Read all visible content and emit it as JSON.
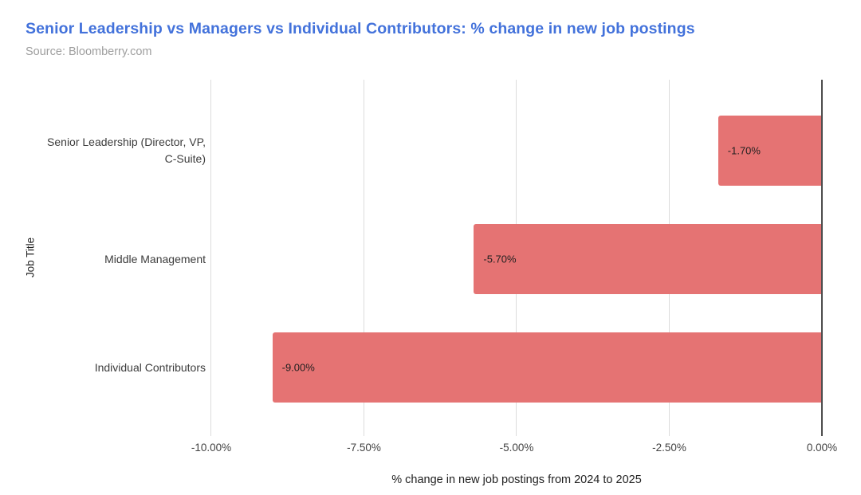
{
  "header": {
    "title": "Senior Leadership vs Managers vs Individual Contributors: % change in new job postings",
    "source": "Source: Bloomberry.com"
  },
  "chart_data": {
    "type": "bar",
    "orientation": "horizontal",
    "title": "Senior Leadership vs Managers vs Individual Contributors: % change in new job postings",
    "source": "Source: Bloomberry.com",
    "categories": [
      "Senior Leadership (Director, VP, C-Suite)",
      "Middle Management",
      "Individual Contributors"
    ],
    "values": [
      -1.7,
      -5.7,
      -9.0
    ],
    "bar_labels": [
      "-1.70%",
      "-5.70%",
      "-9.00%"
    ],
    "xlabel": "% change in new job postings from 2024 to 2025",
    "ylabel": "Job Title",
    "xlim": [
      -10,
      0
    ],
    "xticks": [
      {
        "value": -10,
        "label": "-10.00%"
      },
      {
        "value": -7.5,
        "label": "-7.50%"
      },
      {
        "value": -5,
        "label": "-5.00%"
      },
      {
        "value": -2.5,
        "label": "-2.50%"
      },
      {
        "value": 0,
        "label": "0.00%"
      }
    ],
    "grid": true,
    "legend": false,
    "colors": {
      "background": "#ffffff",
      "bar": "#e57373",
      "title": "#4372db",
      "source": "#9e9e9e",
      "gridline": "#dcdcdc",
      "zero_axis": "#4d4d4d",
      "category_label": "#3c3c3c",
      "tick_label": "#424242",
      "bar_label": "#1f1f1f",
      "axis_title": "#212121"
    }
  }
}
